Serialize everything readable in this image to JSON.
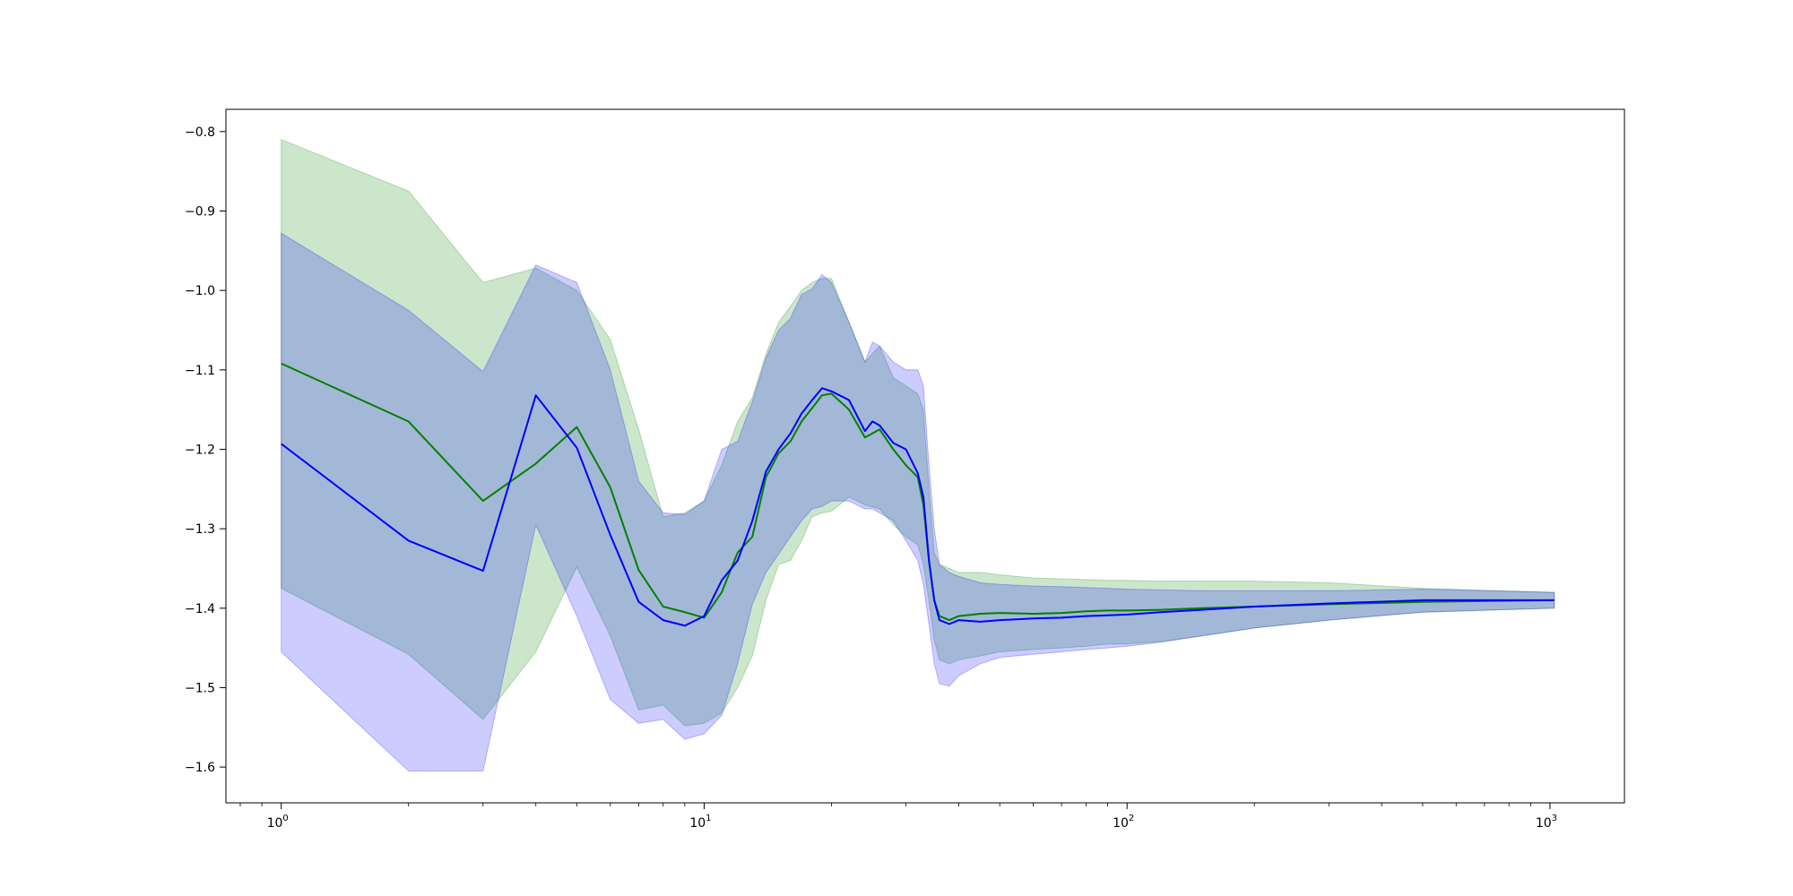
{
  "chart_data": {
    "type": "line",
    "xscale": "log",
    "xlim": [
      0.74,
      1500
    ],
    "ylim": [
      -1.645,
      -0.772
    ],
    "grid": false,
    "legend": "none",
    "title": "",
    "xlabel": "",
    "ylabel": "",
    "x_ticks": [
      {
        "value": 1,
        "base": "10",
        "exp": "0"
      },
      {
        "value": 10,
        "base": "10",
        "exp": "1"
      },
      {
        "value": 100,
        "base": "10",
        "exp": "2"
      },
      {
        "value": 1000,
        "base": "10",
        "exp": "3"
      }
    ],
    "y_ticks": [
      {
        "value": -0.8,
        "label": "−0.8"
      },
      {
        "value": -0.9,
        "label": "−0.9"
      },
      {
        "value": -1.0,
        "label": "−1.0"
      },
      {
        "value": -1.1,
        "label": "−1.1"
      },
      {
        "value": -1.2,
        "label": "−1.2"
      },
      {
        "value": -1.3,
        "label": "−1.3"
      },
      {
        "value": -1.4,
        "label": "−1.4"
      },
      {
        "value": -1.5,
        "label": "−1.5"
      },
      {
        "value": -1.6,
        "label": "−1.6"
      }
    ],
    "series": [
      {
        "color": "#008000",
        "fill_color": "#008000",
        "fill_opacity": 0.2,
        "x": [
          1,
          2,
          3,
          4,
          5,
          6,
          7,
          8,
          9,
          10,
          11,
          12,
          13,
          14,
          15,
          16,
          17,
          18,
          19,
          20,
          22,
          24,
          26,
          28,
          30,
          32,
          33,
          34,
          35,
          36,
          38,
          40,
          45,
          50,
          60,
          70,
          80,
          90,
          100,
          120,
          150,
          200,
          300,
          500,
          1024
        ],
        "mean": [
          -1.092,
          -1.165,
          -1.265,
          -1.218,
          -1.172,
          -1.248,
          -1.352,
          -1.398,
          -1.405,
          -1.412,
          -1.38,
          -1.33,
          -1.31,
          -1.235,
          -1.205,
          -1.19,
          -1.165,
          -1.148,
          -1.132,
          -1.13,
          -1.15,
          -1.185,
          -1.175,
          -1.2,
          -1.22,
          -1.235,
          -1.27,
          -1.34,
          -1.39,
          -1.41,
          -1.415,
          -1.41,
          -1.407,
          -1.406,
          -1.407,
          -1.406,
          -1.404,
          -1.403,
          -1.403,
          -1.402,
          -1.4,
          -1.398,
          -1.395,
          -1.392,
          -1.39
        ],
        "upper": [
          -0.81,
          -0.875,
          -0.99,
          -0.972,
          -1.0,
          -1.062,
          -1.175,
          -1.285,
          -1.28,
          -1.265,
          -1.22,
          -1.165,
          -1.135,
          -1.08,
          -1.04,
          -1.02,
          -1.0,
          -0.99,
          -0.985,
          -0.985,
          -1.04,
          -1.09,
          -1.07,
          -1.11,
          -1.12,
          -1.13,
          -1.15,
          -1.25,
          -1.33,
          -1.345,
          -1.35,
          -1.355,
          -1.355,
          -1.358,
          -1.362,
          -1.363,
          -1.364,
          -1.365,
          -1.365,
          -1.366,
          -1.366,
          -1.366,
          -1.368,
          -1.375,
          -1.38
        ],
        "lower": [
          -1.375,
          -1.458,
          -1.54,
          -1.455,
          -1.348,
          -1.435,
          -1.528,
          -1.522,
          -1.548,
          -1.545,
          -1.532,
          -1.5,
          -1.46,
          -1.39,
          -1.345,
          -1.34,
          -1.315,
          -1.285,
          -1.28,
          -1.278,
          -1.26,
          -1.27,
          -1.275,
          -1.295,
          -1.31,
          -1.32,
          -1.345,
          -1.39,
          -1.44,
          -1.465,
          -1.47,
          -1.465,
          -1.46,
          -1.455,
          -1.452,
          -1.45,
          -1.448,
          -1.445,
          -1.445,
          -1.442,
          -1.435,
          -1.425,
          -1.415,
          -1.405,
          -1.4
        ]
      },
      {
        "color": "#0000ff",
        "fill_color": "#0000ff",
        "fill_opacity": 0.2,
        "x": [
          1,
          2,
          3,
          4,
          5,
          6,
          7,
          8,
          9,
          10,
          11,
          12,
          13,
          14,
          15,
          16,
          17,
          18,
          19,
          20,
          22,
          24,
          25,
          26,
          28,
          30,
          32,
          33,
          34,
          35,
          36,
          38,
          40,
          45,
          50,
          60,
          70,
          80,
          90,
          100,
          120,
          150,
          200,
          300,
          500,
          1024
        ],
        "mean": [
          -1.193,
          -1.315,
          -1.353,
          -1.132,
          -1.198,
          -1.308,
          -1.392,
          -1.415,
          -1.422,
          -1.41,
          -1.365,
          -1.34,
          -1.29,
          -1.228,
          -1.2,
          -1.18,
          -1.155,
          -1.138,
          -1.123,
          -1.127,
          -1.138,
          -1.177,
          -1.165,
          -1.17,
          -1.192,
          -1.2,
          -1.23,
          -1.26,
          -1.34,
          -1.39,
          -1.415,
          -1.42,
          -1.415,
          -1.417,
          -1.415,
          -1.413,
          -1.412,
          -1.41,
          -1.409,
          -1.408,
          -1.405,
          -1.402,
          -1.398,
          -1.394,
          -1.39,
          -1.39
        ],
        "upper": [
          -0.928,
          -1.025,
          -1.102,
          -0.968,
          -0.99,
          -1.1,
          -1.24,
          -1.28,
          -1.282,
          -1.265,
          -1.2,
          -1.19,
          -1.14,
          -1.085,
          -1.05,
          -1.035,
          -1.005,
          -0.998,
          -0.98,
          -0.99,
          -1.04,
          -1.09,
          -1.065,
          -1.07,
          -1.09,
          -1.1,
          -1.1,
          -1.12,
          -1.22,
          -1.3,
          -1.345,
          -1.355,
          -1.36,
          -1.368,
          -1.37,
          -1.372,
          -1.373,
          -1.374,
          -1.375,
          -1.376,
          -1.377,
          -1.378,
          -1.378,
          -1.378,
          -1.376,
          -1.38
        ],
        "lower": [
          -1.455,
          -1.605,
          -1.605,
          -1.295,
          -1.41,
          -1.515,
          -1.545,
          -1.54,
          -1.565,
          -1.558,
          -1.535,
          -1.47,
          -1.395,
          -1.355,
          -1.332,
          -1.31,
          -1.29,
          -1.275,
          -1.272,
          -1.265,
          -1.265,
          -1.275,
          -1.275,
          -1.28,
          -1.29,
          -1.315,
          -1.34,
          -1.37,
          -1.42,
          -1.47,
          -1.495,
          -1.498,
          -1.485,
          -1.47,
          -1.462,
          -1.458,
          -1.455,
          -1.452,
          -1.45,
          -1.448,
          -1.443,
          -1.435,
          -1.425,
          -1.415,
          -1.405,
          -1.4
        ]
      }
    ]
  }
}
